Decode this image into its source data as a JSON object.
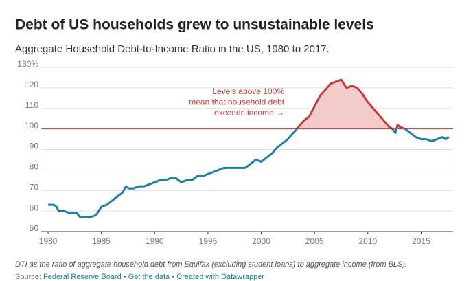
{
  "chart_data": {
    "type": "line",
    "title": "Debt of US households grew to unsustainable levels",
    "subtitle": "Aggregate Household Debt-to-Income Ratio in the US, 1980 to 2017.",
    "annotation": [
      "Levels above 100%",
      "mean that household debt",
      "exceeds income →"
    ],
    "note": "DTI as the ratio of aggregate household debt from Equifax (excluding student loans) to aggregate income (from BLS).",
    "source_label": "Source:",
    "links": [
      "Federal Reserve Board",
      "Get the data",
      "Created with Datawrapper"
    ],
    "separator": "•",
    "x": [
      1980,
      1980.5,
      1980.8,
      1981,
      1981.5,
      1982,
      1982.7,
      1983,
      1984,
      1984.5,
      1985,
      1985.5,
      1986,
      1986.5,
      1987,
      1987.3,
      1987.6,
      1988,
      1988.5,
      1989,
      1990,
      1990.5,
      1991,
      1991.5,
      1992,
      1992.5,
      1993,
      1993.5,
      1994,
      1994.5,
      1995,
      1995.5,
      1996,
      1996.5,
      1997,
      1998,
      1998.5,
      1999,
      1999.5,
      2000,
      2000.5,
      2001,
      2001.5,
      2002,
      2002.5,
      2003,
      2003.5,
      2004,
      2004.5,
      2005,
      2005.5,
      2006,
      2006.5,
      2007,
      2007.5,
      2008,
      2008.5,
      2009,
      2009.5,
      2010,
      2010.5,
      2011,
      2011.5,
      2012,
      2012.3,
      2012.6,
      2012.8,
      2013,
      2013.5,
      2014,
      2014.5,
      2015,
      2015.5,
      2016,
      2016.5,
      2017,
      2017.3,
      2017.6
    ],
    "series": [
      {
        "color": "#1d81a2",
        "above_color": "#c33b3b",
        "values": [
          63,
          63,
          62,
          60,
          60,
          59,
          59,
          57,
          57,
          58,
          62,
          63,
          65,
          67,
          69,
          72,
          71,
          71,
          72,
          72,
          74,
          75,
          75,
          76,
          76,
          74,
          75,
          75,
          77,
          77,
          78,
          79,
          80,
          81,
          81,
          81,
          81,
          83,
          85,
          84,
          86,
          88,
          91,
          93,
          95,
          98,
          101,
          104,
          106,
          111,
          116,
          119,
          122,
          123,
          124,
          120,
          121,
          120,
          117,
          113,
          110,
          107,
          104,
          101,
          100,
          98,
          102,
          101,
          100,
          98,
          96,
          95,
          95,
          94,
          95,
          96,
          95,
          96
        ]
      }
    ],
    "reference_line": {
      "value": 100,
      "color": "#c33b3b"
    },
    "area_color": "#f5cccc",
    "xlim": [
      1980,
      2018
    ],
    "xticks": [
      1980,
      1985,
      1990,
      1995,
      2000,
      2005,
      2010,
      2015
    ],
    "ylim": [
      50,
      130
    ],
    "yticks": [
      50,
      60,
      70,
      80,
      90,
      100,
      110,
      120,
      {
        "value": 130,
        "label": "130%"
      }
    ],
    "grid": true
  }
}
